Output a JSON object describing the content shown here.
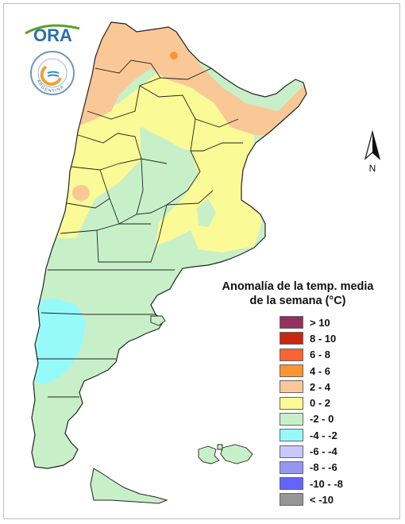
{
  "legend": {
    "title_line1": "Anomalía de la temp. media",
    "title_line2": "de la semana (°C)",
    "items": [
      {
        "label": "> 10",
        "color": "#93305f"
      },
      {
        "label": "8 - 10",
        "color": "#c8280f"
      },
      {
        "label": "6 - 8",
        "color": "#fa6432"
      },
      {
        "label": "4 - 6",
        "color": "#fa9632"
      },
      {
        "label": "2 - 4",
        "color": "#fac896"
      },
      {
        "label": "0 - 2",
        "color": "#fafa96"
      },
      {
        "label": "-2 - 0",
        "color": "#c8f0c8"
      },
      {
        "label": "-4 - -2",
        "color": "#96fafa"
      },
      {
        "label": "-6 - -4",
        "color": "#c8c8fa"
      },
      {
        "label": "-8 - -6",
        "color": "#9696f0"
      },
      {
        "label": "-10 - -8",
        "color": "#6464fa"
      },
      {
        "label": "< -10",
        "color": "#969696"
      }
    ]
  },
  "north_arrow": {
    "label": "N"
  },
  "logos": {
    "ora": "ORA",
    "smn_ring_text": "ARGENTINA"
  },
  "map": {
    "country": "Argentina",
    "zone_colors": {
      "warm": "#fac896",
      "mild": "#fafa96",
      "cool": "#c8f0c8",
      "cold": "#96fafa",
      "hot_spot": "#fa9632"
    }
  }
}
